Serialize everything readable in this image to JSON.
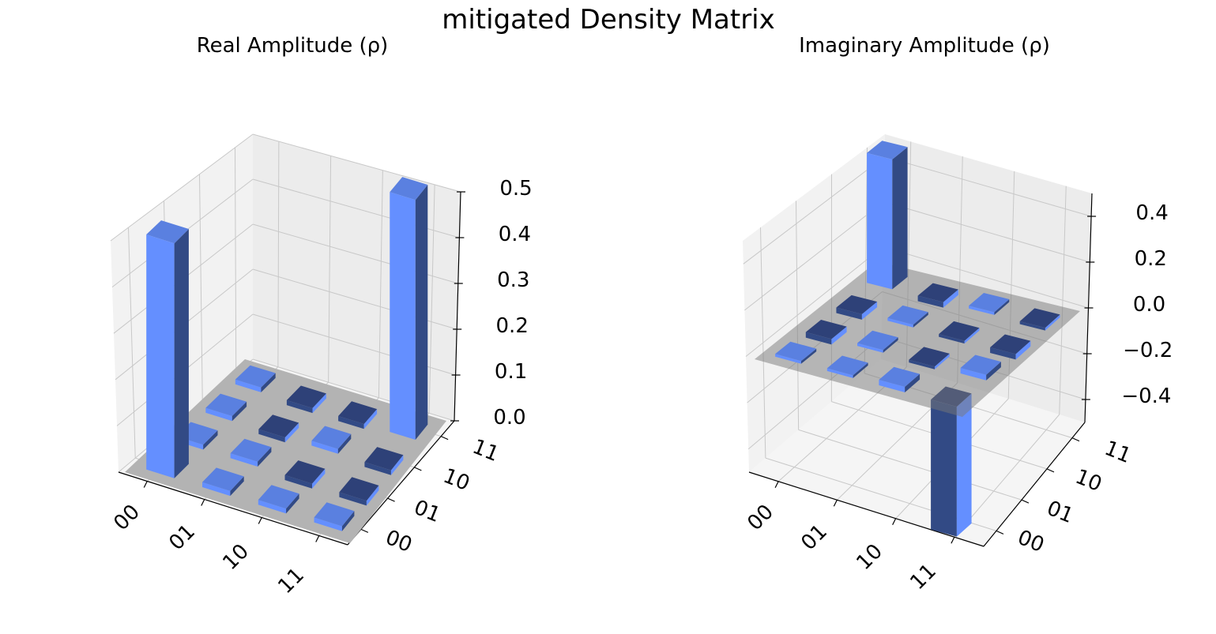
{
  "title": "mitigated Density Matrix",
  "colors": {
    "bar_face": "#648fff",
    "bar_top": "#5a80e0",
    "bar_side_dark": "#324a85",
    "tile_dark": "#2e4178",
    "plane": "#b3b3b3",
    "pane_left": "#f2f2f2",
    "pane_back": "#ececec",
    "pane_floor": "#f5f5f5",
    "grid": "#c8c8c8"
  },
  "chart_data": [
    {
      "type": "bar3d",
      "title": "Real Amplitude (ρ)",
      "xticklabels": [
        "00",
        "01",
        "10",
        "11"
      ],
      "yticklabels": [
        "00",
        "01",
        "10",
        "11"
      ],
      "zlim": [
        0,
        0.5
      ],
      "zticks": [
        0.0,
        0.1,
        0.2,
        0.3,
        0.4,
        0.5
      ],
      "zticklabels": [
        "0.0",
        "0.1",
        "0.2",
        "0.3",
        "0.4",
        "0.5"
      ],
      "grid": true,
      "values": [
        [
          0.48,
          0.01,
          0.01,
          0.01
        ],
        [
          0.01,
          0.01,
          -0.01,
          -0.01
        ],
        [
          0.01,
          -0.01,
          0.01,
          -0.01
        ],
        [
          0.01,
          -0.01,
          -0.01,
          0.49
        ]
      ]
    },
    {
      "type": "bar3d",
      "title": "Imaginary Amplitude (ρ)",
      "xticklabels": [
        "00",
        "01",
        "10",
        "11"
      ],
      "yticklabels": [
        "00",
        "01",
        "10",
        "11"
      ],
      "zlim": [
        -0.5,
        0.5
      ],
      "zticks": [
        0.4,
        0.2,
        0.0,
        -0.2,
        -0.4
      ],
      "zticklabels": [
        "0.4",
        "0.2",
        "0.0",
        "−0.2",
        "−0.4"
      ],
      "grid": true,
      "values": [
        [
          0.01,
          -0.02,
          -0.02,
          0.47
        ],
        [
          0.01,
          0.01,
          0.01,
          -0.02
        ],
        [
          0.02,
          -0.01,
          -0.01,
          0.01
        ],
        [
          -0.47,
          0.02,
          -0.02,
          -0.01
        ]
      ]
    }
  ]
}
